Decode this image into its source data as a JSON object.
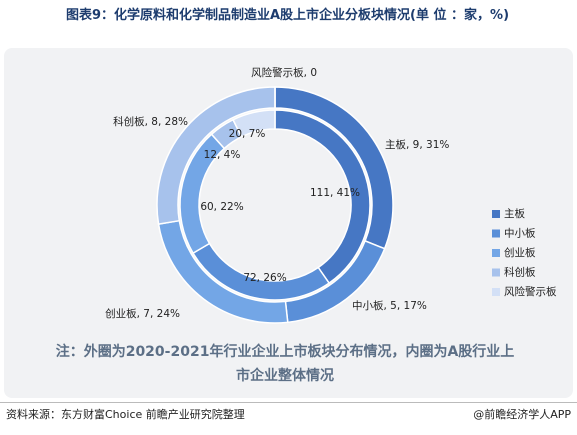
{
  "title": "图表9：化学原料和化学制品制造业A股上市企业分板块情况(单 位 ：家，%)",
  "chart_data": {
    "type": "donut",
    "categories": [
      "主板",
      "中小板",
      "创业板",
      "科创板",
      "风险警示板"
    ],
    "colors": [
      "#4677c4",
      "#5a8fd8",
      "#73a6e6",
      "#a7c2ec",
      "#d3e0f6"
    ],
    "series": [
      {
        "values": [
          9,
          5,
          7,
          8,
          0
        ],
        "value_labels": [
          "主板, 9, 31%",
          "中小板, 5, 17%",
          "创业板, 7, 24%",
          "科创板, 8, 28%",
          "风险警示板, 0"
        ]
      },
      {
        "values": [
          111,
          72,
          60,
          12,
          20
        ],
        "value_labels": [
          "111, 41%",
          "72, 26%",
          "60, 22%",
          "12, 4%",
          "20, 7%"
        ]
      }
    ],
    "note": "注：外圈为2020-2021年行业企业上市板块分布情况，内圈为A股行业上市企业整体情况"
  },
  "source": "资料来源：东方财富Choice 前瞻产业研究院整理",
  "brand": "@前瞻经济学人APP"
}
